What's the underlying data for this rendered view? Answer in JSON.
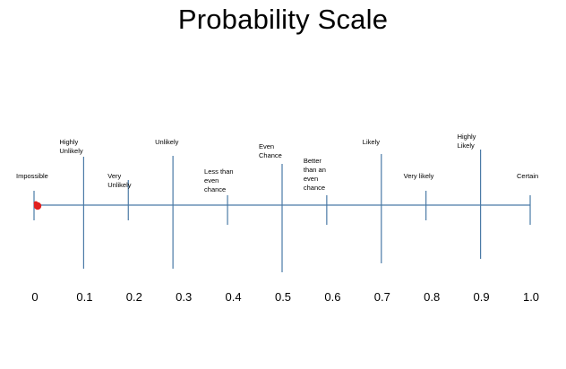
{
  "title": "Probability Scale",
  "colors": {
    "axis": "#4a7aa6",
    "marker": "#e0201f"
  },
  "marker": {
    "value": 0,
    "shape": "dot"
  },
  "scale": {
    "ticks": [
      "0",
      "0.1",
      "0.2",
      "0.3",
      "0.4",
      "0.5",
      "0.6",
      "0.7",
      "0.8",
      "0.9",
      "1.0"
    ]
  },
  "labels": [
    {
      "text": "Impossible",
      "value": 0.0
    },
    {
      "text": "Highly\nUnlikely",
      "value": 0.1
    },
    {
      "text": "Very\nUnlikely",
      "value": 0.19
    },
    {
      "text": "Unlikely",
      "value": 0.28
    },
    {
      "text": "Less than\neven\nchance",
      "value": 0.39
    },
    {
      "text": "Even\nChance",
      "value": 0.5
    },
    {
      "text": "Better\nthan an\neven\nchance",
      "value": 0.59
    },
    {
      "text": "Likely",
      "value": 0.7
    },
    {
      "text": "Very likely",
      "value": 0.79
    },
    {
      "text": "Highly\nLikely",
      "value": 0.9
    },
    {
      "text": "Certain",
      "value": 1.0
    }
  ]
}
